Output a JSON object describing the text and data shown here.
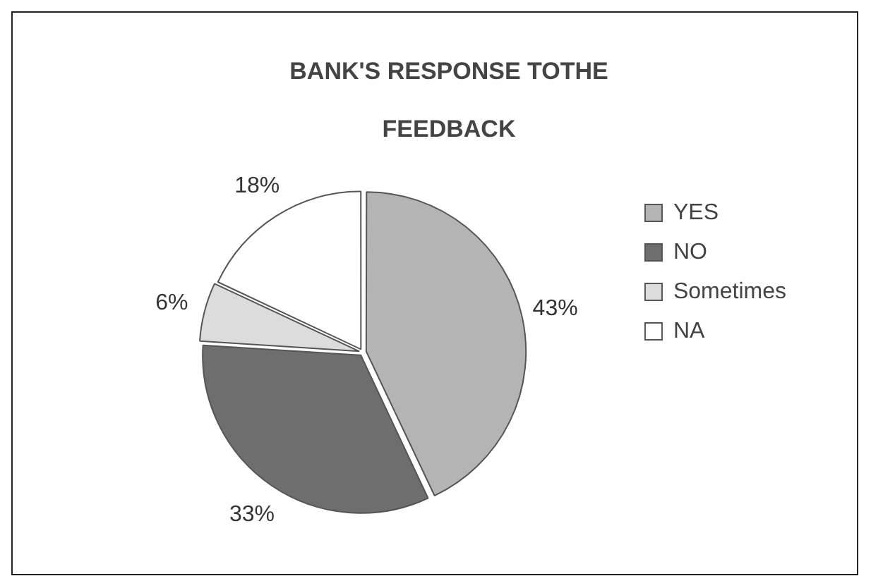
{
  "chart_data": {
    "type": "pie",
    "title": [
      "BANK'S RESPONSE TOTHE",
      "FEEDBACK"
    ],
    "categories": [
      "YES",
      "NO",
      "Sometimes",
      "NA"
    ],
    "values": [
      43,
      33,
      6,
      18
    ],
    "value_labels": [
      "43%",
      "33%",
      "6%",
      "18%"
    ],
    "colors": [
      "#b4b4b4",
      "#6e6e6e",
      "#dcdcdc",
      "#ffffff"
    ],
    "legend": "right"
  }
}
